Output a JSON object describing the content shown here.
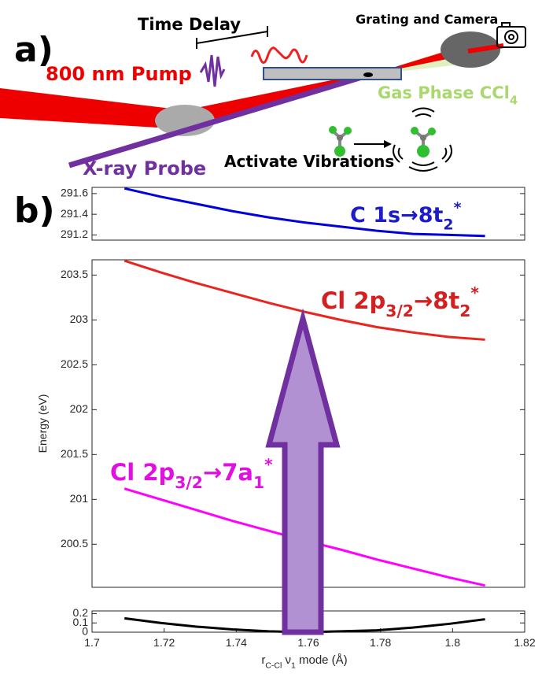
{
  "panel_labels": [
    "a)",
    "b)"
  ],
  "diagram": {
    "time_delay": "Time Delay",
    "grating": "Grating and Camera",
    "pump": "800 nm Pump",
    "gas_phase": [
      {
        "text": "Gas Phase CCl"
      },
      {
        "text": "4",
        "shift": "sub"
      }
    ],
    "probe": "X-ray Probe",
    "vibrations": "Activate Vibrations"
  },
  "chart_data": [
    {
      "type": "line",
      "xlim": [
        1.7,
        1.82
      ],
      "ylim": [
        291.15,
        291.66
      ],
      "yticks": [
        291.2,
        291.4,
        291.6
      ],
      "x": [
        1.709,
        1.719,
        1.729,
        1.739,
        1.749,
        1.759,
        1.769,
        1.779,
        1.789,
        1.799,
        1.809
      ],
      "series": [
        {
          "color": "#0000dd",
          "values": [
            291.65,
            291.57,
            291.5,
            291.43,
            291.37,
            291.32,
            291.28,
            291.24,
            291.21,
            291.2,
            291.19
          ]
        }
      ],
      "annotations": [
        {
          "color": "#1c1cc8",
          "parts": [
            {
              "text": "C 1s"
            },
            {
              "text": "→8t"
            },
            {
              "text": "2",
              "shift": "sub"
            },
            {
              "text": "*",
              "shift": "super"
            }
          ]
        }
      ]
    },
    {
      "type": "line",
      "xlim": [
        1.7,
        1.82
      ],
      "ylim": [
        200.02,
        203.67
      ],
      "yticks": [
        200.5,
        201,
        201.5,
        202,
        202.5,
        203,
        203.5
      ],
      "ylabel": "Energy (eV)",
      "x": [
        1.709,
        1.719,
        1.729,
        1.739,
        1.749,
        1.759,
        1.769,
        1.779,
        1.789,
        1.799,
        1.809
      ],
      "series": [
        {
          "color": "#e8251f",
          "values": [
            203.66,
            203.53,
            203.41,
            203.3,
            203.19,
            203.09,
            203.0,
            202.92,
            202.86,
            202.81,
            202.78
          ]
        },
        {
          "color": "#ff00ff",
          "values": [
            201.12,
            201.0,
            200.88,
            200.76,
            200.65,
            200.54,
            200.44,
            200.33,
            200.23,
            200.13,
            200.04
          ]
        }
      ],
      "annotations": [
        {
          "color": "#d42020",
          "parts": [
            {
              "text": "Cl 2p"
            },
            {
              "text": "3/2",
              "shift": "sub"
            },
            {
              "text": "→8t"
            },
            {
              "text": "2",
              "shift": "sub"
            },
            {
              "text": "*",
              "shift": "super"
            }
          ]
        },
        {
          "color": "#e010e0",
          "parts": [
            {
              "text": "Cl 2p"
            },
            {
              "text": "3/2",
              "shift": "sub"
            },
            {
              "text": "→7a"
            },
            {
              "text": "1",
              "shift": "sub"
            },
            {
              "text": "*",
              "shift": "super"
            }
          ]
        }
      ]
    },
    {
      "type": "line",
      "xlim": [
        1.7,
        1.82
      ],
      "ylim": [
        0,
        0.23
      ],
      "yticks": [
        0,
        0.1,
        0.2
      ],
      "xticks": [
        1.7,
        1.72,
        1.74,
        1.76,
        1.78,
        1.8,
        1.82
      ],
      "xlabel": [
        {
          "text": "r"
        },
        {
          "text": "C-Cl",
          "shift": "sub"
        },
        {
          "text": " ν"
        },
        {
          "text": "1",
          "shift": "sub"
        },
        {
          "text": " mode (Å)"
        }
      ],
      "x": [
        1.709,
        1.719,
        1.729,
        1.739,
        1.749,
        1.759,
        1.769,
        1.779,
        1.789,
        1.799,
        1.809
      ],
      "series": [
        {
          "color": "#000000",
          "values": [
            0.15,
            0.1,
            0.06,
            0.03,
            0.01,
            0.0,
            0.01,
            0.02,
            0.05,
            0.09,
            0.14
          ]
        }
      ]
    }
  ]
}
